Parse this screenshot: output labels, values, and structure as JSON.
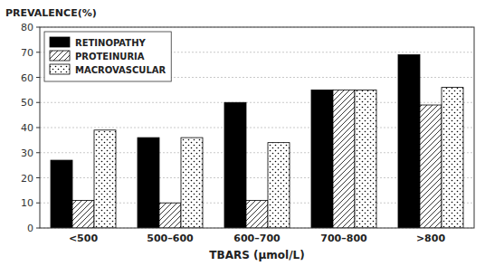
{
  "chart_data": {
    "type": "bar",
    "categories": [
      "<500",
      "500–600",
      "600–700",
      "700–800",
      ">800"
    ],
    "series": [
      {
        "name": "RETINOPATHY",
        "color": "#000000",
        "values": [
          27,
          36,
          50,
          55,
          69
        ]
      },
      {
        "name": "PROTEINURIA",
        "color": "#ffffff",
        "values": [
          11,
          10,
          11,
          55,
          49
        ]
      },
      {
        "name": "MACROVASCULAR",
        "color": "#ffffff",
        "values": [
          39,
          36,
          34,
          55,
          56
        ]
      }
    ],
    "ylabel": "PREVALENCE(%)",
    "xlabel": "TBARS (μmol/L)",
    "ylim": [
      0,
      80
    ],
    "yticks": [
      0,
      10,
      20,
      30,
      40,
      50,
      60,
      70,
      80
    ],
    "grid": true,
    "legend": "upper-left"
  }
}
